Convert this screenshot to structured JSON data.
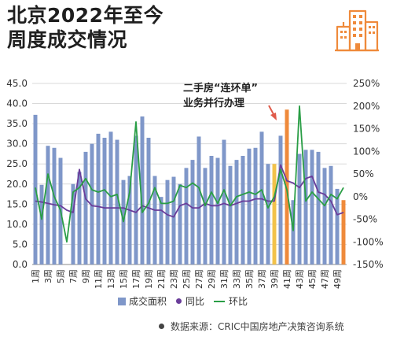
{
  "title": {
    "line1": "北京2022年至今",
    "line2": "周度成交情况"
  },
  "annotation": {
    "line1": "二手房“连环单”",
    "line2": "业务并行办理"
  },
  "legend": {
    "bar": "成交面积",
    "yoy": "同比",
    "mom": "环比"
  },
  "source": "数据来源：CRIC中国房地产决策咨询系统",
  "colors": {
    "bar": "#7f97c9",
    "highlight1": "#f2c24a",
    "highlight2": "#ef8a3b",
    "yoy": "#6a3d9a",
    "mom": "#2a9e46",
    "arrow": "#e05a4a"
  },
  "icons": {
    "logo": "building-icon"
  },
  "chart_data": {
    "type": "bar+line",
    "categories": [
      "1周",
      "2周",
      "3周",
      "4周",
      "5周",
      "6周",
      "7周",
      "8周",
      "9周",
      "10周",
      "11周",
      "12周",
      "13周",
      "14周",
      "15周",
      "16周",
      "17周",
      "18周",
      "19周",
      "20周",
      "21周",
      "22周",
      "23周",
      "24周",
      "25周",
      "26周",
      "27周",
      "28周",
      "29周",
      "30周",
      "31周",
      "32周",
      "33周",
      "34周",
      "35周",
      "36周",
      "37周",
      "38周",
      "39周",
      "40周",
      "41周",
      "42周",
      "43周",
      "44周",
      "45周",
      "46周",
      "47周",
      "48周",
      "49周",
      "50周"
    ],
    "x_tick_labels": [
      "1周",
      "3周",
      "5周",
      "7周",
      "9周",
      "11周",
      "13周",
      "15周",
      "17周",
      "19周",
      "21周",
      "23周",
      "25周",
      "27周",
      "29周",
      "31周",
      "33周",
      "35周",
      "37周",
      "39周",
      "41周",
      "43周",
      "45周",
      "47周",
      "49周"
    ],
    "y_left": {
      "ticks": [
        "0.0",
        "5.0",
        "10.0",
        "15.0",
        "20.0",
        "25.0",
        "30.0",
        "35.0",
        "40.0",
        "45.0"
      ],
      "ylim": [
        0,
        45
      ]
    },
    "y_right": {
      "ticks": [
        "-150%",
        "-100%",
        "-50%",
        "0%",
        "50%",
        "100%",
        "150%",
        "200%",
        "250%"
      ],
      "ylim": [
        -150,
        250
      ]
    },
    "series": [
      {
        "name": "成交面积",
        "axis": "left",
        "type": "bar",
        "values": [
          37.2,
          19.8,
          29.5,
          29.0,
          26.5,
          0,
          20.0,
          23.0,
          28.0,
          30.0,
          32.5,
          31.5,
          33.0,
          31.0,
          21.0,
          22.0,
          32.0,
          36.8,
          31.5,
          22.0,
          16.8,
          21.0,
          21.8,
          20.0,
          24.0,
          26.0,
          31.8,
          24.0,
          27.0,
          26.5,
          31.0,
          24.5,
          26.0,
          27.0,
          28.8,
          29.0,
          33.0,
          25.0,
          25.0,
          32.0,
          38.5,
          16.0,
          27.5,
          28.5,
          28.5,
          28.0,
          24.0,
          24.5,
          18.8,
          16.0
        ]
      },
      {
        "name": "同比",
        "axis": "right",
        "type": "line",
        "values": [
          -10,
          -12,
          -15,
          -18,
          -20,
          -30,
          -35,
          60,
          -5,
          -20,
          -22,
          -25,
          -25,
          -25,
          -25,
          -30,
          -35,
          -20,
          -25,
          -30,
          -30,
          -40,
          -45,
          -20,
          -15,
          -25,
          -25,
          -15,
          -20,
          -20,
          -15,
          -20,
          -15,
          -10,
          -10,
          -5,
          -5,
          -10,
          -10,
          70,
          35,
          30,
          20,
          40,
          45,
          10,
          5,
          -10,
          -40,
          -35
        ]
      },
      {
        "name": "环比",
        "axis": "right",
        "type": "line",
        "values": [
          20,
          -50,
          50,
          0,
          -30,
          -100,
          10,
          20,
          40,
          15,
          10,
          15,
          0,
          5,
          -55,
          10,
          165,
          -35,
          -15,
          20,
          -15,
          -15,
          -10,
          25,
          20,
          30,
          20,
          -20,
          10,
          -15,
          15,
          -20,
          0,
          5,
          10,
          5,
          15,
          -25,
          0,
          60,
          15,
          -75,
          200,
          -10,
          10,
          -5,
          -20,
          5,
          -5,
          20
        ]
      }
    ]
  }
}
